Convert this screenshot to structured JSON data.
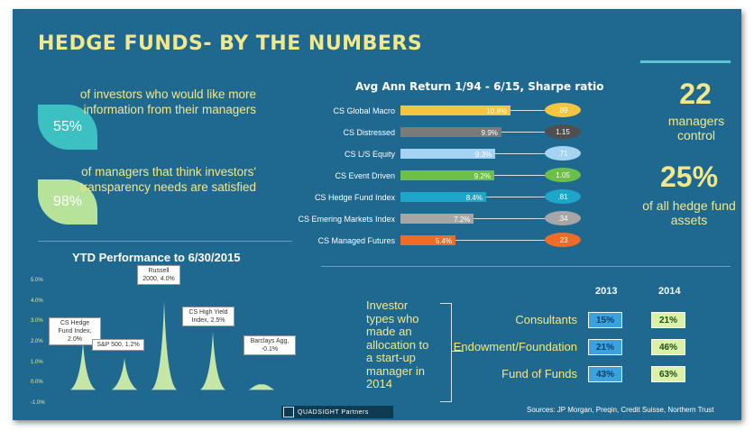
{
  "title": "HEDGE FUNDS- BY THE NUMBERS",
  "stats_left": [
    {
      "value": "55%",
      "text": "of investors who would like more information from their managers"
    },
    {
      "value": "98%",
      "text": "of managers that think investors' transparency needs are satisfied"
    }
  ],
  "stats_right": [
    {
      "value": "22",
      "text": "managers control"
    },
    {
      "value": "25%",
      "text": "of all hedge fund assets"
    }
  ],
  "colors": {
    "background": "#1f6890",
    "accent_yellow": "#f3e889",
    "leaf_teal": "#3cc0c2",
    "leaf_green": "#b6e29a"
  },
  "chart_data": [
    {
      "type": "bar",
      "title": "Avg Ann Return 1/94 - 6/15, Sharpe ratio",
      "categories": [
        "CS Global Macro",
        "CS Distressed",
        "CS L/S Equity",
        "CS Event Driven",
        "CS Hedge Fund Index",
        "CS Emering Markets Index",
        "CS Managed Futures"
      ],
      "series": [
        {
          "values": [
            10.8,
            9.9,
            9.3,
            9.2,
            8.4,
            7.2,
            5.4
          ],
          "labels": [
            "10.8%",
            "9.9%",
            "9.3%",
            "9.2%",
            "8.4%",
            "7.2%",
            "5.4%"
          ]
        }
      ],
      "sharpe": [
        ".89",
        "1.15",
        ".71",
        "1.05",
        ".81",
        ".34",
        ".23"
      ],
      "colors": [
        "#f4c542",
        "#7a7a7a",
        "#a7d3f2",
        "#6cc04a",
        "#1ea6c8",
        "#a6a6a6",
        "#ee6b28"
      ],
      "sharpe_colors": [
        "#f4c542",
        "#4f4f4f",
        "#a7d3f2",
        "#6cc04a",
        "#1ea6c8",
        "#a6a6a6",
        "#ee6b28"
      ]
    },
    {
      "type": "bar",
      "title": "YTD Performance to 6/30/2015",
      "y_ticks": [
        "5.0%",
        "4.0%",
        "3.0%",
        "2.0%",
        "1.0%",
        "0.0%",
        "-1.0%"
      ],
      "ylim": [
        -1.0,
        5.0
      ],
      "categories": [
        "CS Hedge Fund Index",
        "S&P 500",
        "Russell 2000",
        "CS High Yield Index",
        "Barclays Agg."
      ],
      "values": [
        2.0,
        1.2,
        4.0,
        2.5,
        -0.1
      ],
      "labels": [
        "CS Hedge Fund Index, 2.0%",
        "S&P 500, 1.2%",
        "Russell 2000, 4.0%",
        "CS High Yield Index, 2.5%",
        "Barclays Agg, -0.1%"
      ]
    },
    {
      "type": "table",
      "title": "Investor types who made an allocation to a start-up manager in 2014",
      "columns": [
        "2013",
        "2014"
      ],
      "rows": [
        {
          "label": "Consultants",
          "values": [
            "15%",
            "21%"
          ]
        },
        {
          "label": "Endowment/Foundation",
          "values": [
            "21%",
            "46%"
          ]
        },
        {
          "label": "Fund of Funds",
          "values": [
            "43%",
            "63%"
          ]
        }
      ]
    }
  ],
  "sources": "Sources: JP Morgan, Preqin, Credit Suisse, Northern Trust",
  "logo_text": "QUADSIGHT Partners"
}
